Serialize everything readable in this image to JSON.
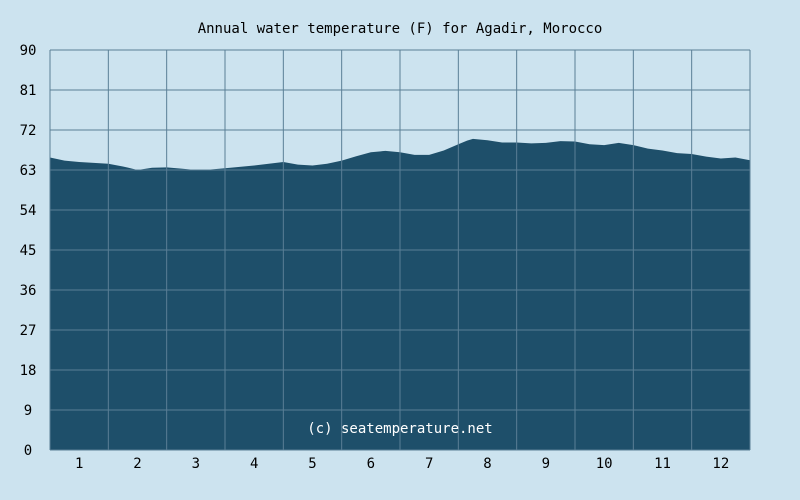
{
  "chart_data": {
    "type": "area",
    "title": "Annual water temperature (F) for Agadir, Morocco",
    "xlabel": "",
    "ylabel": "",
    "ylim": [
      0,
      90
    ],
    "xlim": [
      0.5,
      12.5
    ],
    "grid": true,
    "x_ticks": [
      "1",
      "2",
      "3",
      "4",
      "5",
      "6",
      "7",
      "8",
      "9",
      "10",
      "11",
      "12"
    ],
    "y_ticks": [
      "0",
      "9",
      "18",
      "27",
      "36",
      "45",
      "54",
      "63",
      "72",
      "81",
      "90"
    ],
    "series": [
      {
        "x": [
          0.5,
          0.75,
          1.0,
          1.25,
          1.5,
          1.75,
          2.0,
          2.25,
          2.5,
          2.75,
          3.0,
          3.25,
          3.5,
          3.75,
          4.0,
          4.25,
          4.5,
          4.75,
          5.0,
          5.25,
          5.5,
          5.75,
          6.0,
          6.25,
          6.5,
          6.75,
          7.0,
          7.25,
          7.5,
          7.65,
          7.75,
          8.0,
          8.25,
          8.5,
          8.75,
          9.0,
          9.25,
          9.5,
          9.75,
          10.0,
          10.25,
          10.5,
          10.75,
          11.0,
          11.25,
          11.5,
          11.75,
          12.0,
          12.25,
          12.5
        ],
        "values": [
          65.8,
          65.1,
          64.8,
          64.6,
          64.4,
          63.8,
          63.0,
          63.5,
          63.6,
          63.3,
          63.0,
          63.1,
          63.4,
          63.7,
          64.0,
          64.4,
          64.8,
          64.2,
          64.0,
          64.4,
          65.1,
          66.1,
          67.0,
          67.3,
          67.0,
          66.4,
          66.4,
          67.4,
          68.8,
          69.6,
          70.0,
          69.7,
          69.2,
          69.2,
          69.0,
          69.1,
          69.5,
          69.4,
          68.8,
          68.6,
          69.1,
          68.6,
          67.8,
          67.4,
          66.8,
          66.6,
          66.0,
          65.6,
          65.8,
          65.2
        ]
      }
    ],
    "watermark": "(c) seatemperature.net"
  },
  "colors": {
    "background": "#cce3ef",
    "area_fill": "#1e4f6a",
    "grid_line": "#5a7f96",
    "text": "#000000",
    "watermark": "#ffffff"
  }
}
